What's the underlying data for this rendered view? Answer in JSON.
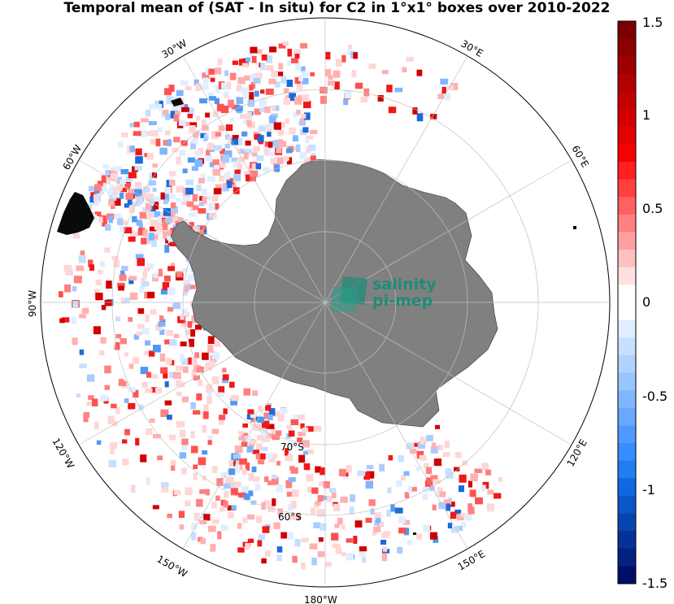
{
  "title": "Temporal mean of (SAT - In situ) for C2 in 1°x1° boxes over 2010-2022",
  "map": {
    "projection": "south polar stereographic",
    "land_color": "#808080",
    "longitude_labels": [
      "30°W",
      "30°E",
      "60°W",
      "60°E",
      "90°W",
      "120°W",
      "120°E",
      "150°W",
      "150°E",
      "180°W"
    ],
    "latitude_labels": [
      "70°S",
      "60°S"
    ],
    "watermark": {
      "line1": "salinity",
      "line2": "pi-mep",
      "color": "#1d8c7a"
    }
  },
  "colorbar": {
    "min": -1.5,
    "max": 1.5,
    "tick_labels": [
      "1.5",
      "1",
      "0.5",
      "0",
      "-0.5",
      "-1",
      "-1.5"
    ],
    "colors_top_to_bottom": [
      "#7a0000",
      "#8c0000",
      "#9e0000",
      "#b00000",
      "#c20000",
      "#d40000",
      "#e60000",
      "#f80000",
      "#ff2020",
      "#ff4040",
      "#ff6060",
      "#ff8080",
      "#ffa0a0",
      "#ffc0c0",
      "#ffe0e0",
      "#ffffff",
      "#ffffff",
      "#e0eeff",
      "#c8e0ff",
      "#b0d2ff",
      "#98c4ff",
      "#80b6ff",
      "#68a8ff",
      "#509aff",
      "#388cff",
      "#207ef0",
      "#1068e0",
      "#0a56c8",
      "#0844b0",
      "#063298",
      "#042080",
      "#000e68"
    ]
  }
}
